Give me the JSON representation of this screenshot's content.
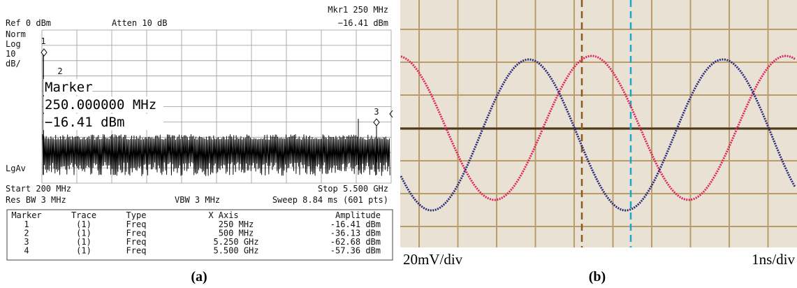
{
  "panel_a": {
    "header": {
      "ref": "Ref 0 dBm",
      "atten": "Atten 10 dB",
      "mkr": "Mkr1  250 MHz",
      "mkr_value": "−16.41  dBm"
    },
    "left_labels": [
      "Norm",
      "Log",
      "10",
      "dB/"
    ],
    "detector": "LgAv",
    "marker_numbers": [
      "1",
      "2",
      "3"
    ],
    "marker_box": [
      "Marker",
      "250.000000 MHz",
      "−16.41 dBm"
    ],
    "footer": {
      "start": "Start 200 MHz",
      "stop": "Stop 5.500 GHz",
      "rbw": "Res BW 3 MHz",
      "vbw": "VBW 3 MHz",
      "sweep": "Sweep 8.84 ms (601 pts)"
    },
    "table": {
      "columns": [
        "Marker",
        "Trace",
        "Type",
        "X Axis",
        "Amplitude"
      ],
      "rows": [
        [
          "1",
          "(1)",
          "Freq",
          "250 MHz",
          "-16.41 dBm"
        ],
        [
          "2",
          "(1)",
          "Freq",
          "500 MHz",
          "-36.13 dBm"
        ],
        [
          "3",
          "(1)",
          "Freq",
          "5.250 GHz",
          "-62.68 dBm"
        ],
        [
          "4",
          "(1)",
          "Freq",
          "5.500 GHz",
          "-57.36 dBm"
        ]
      ]
    },
    "caption": "(a)"
  },
  "panel_b": {
    "vertical_scale": "20mV/div",
    "time_scale": "1ns/div",
    "caption": "(b)"
  }
}
